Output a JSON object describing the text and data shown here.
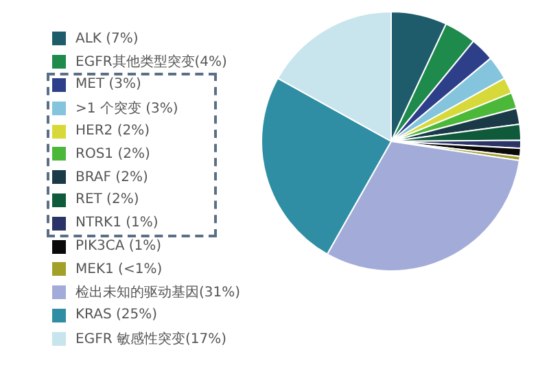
{
  "chart_data": {
    "type": "pie",
    "legend": "left",
    "categories": [
      "ALK (7%)",
      "EGFR其他类型突变(4%)",
      "MET (3%)",
      ">1 个突变 (3%)",
      "HER2 (2%)",
      "ROS1 (2%)",
      "BRAF (2%)",
      "RET (2%)",
      "NTRK1 (1%)",
      "PIK3CA (1%)",
      "MEK1 (<1%)",
      "检出未知的驱动基因(31%)",
      "KRAS (25%)",
      "EGFR 敏感性突变(17%)"
    ],
    "values": [
      7,
      4,
      3,
      3,
      2,
      2,
      2,
      2,
      1,
      1,
      0.5,
      31,
      25,
      17
    ],
    "colors": [
      "#1f5c6b",
      "#1e8a4c",
      "#2e3f8a",
      "#84c4dd",
      "#d7d93a",
      "#4cb83a",
      "#1b3a48",
      "#0f5a3a",
      "#2a3466",
      "#0a0a0a",
      "#a3a02a",
      "#a3acd8",
      "#2f8ea3",
      "#c8e4ec"
    ]
  }
}
